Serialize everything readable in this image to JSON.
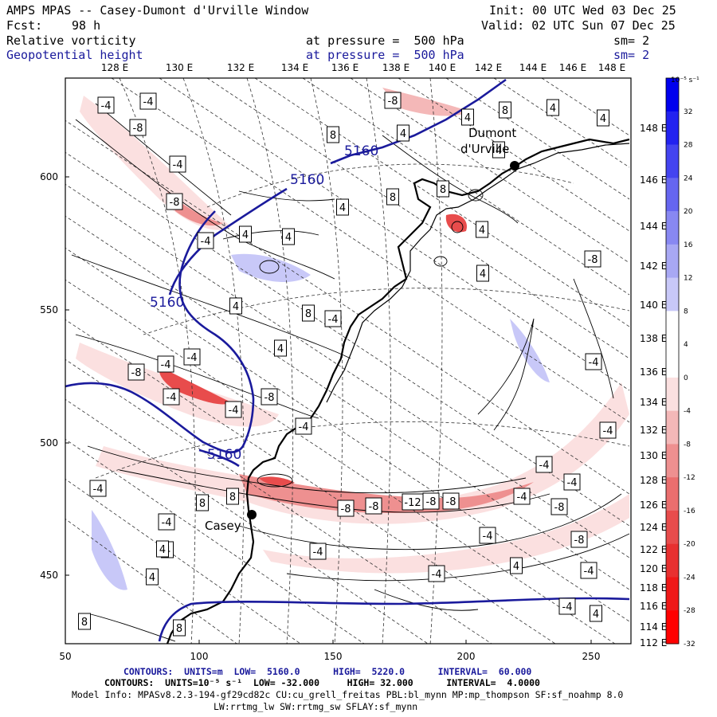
{
  "header": {
    "title": "AMPS MPAS -- Casey-Dumont d'Urville Window",
    "init": "Init: 00 UTC Wed 03 Dec 25",
    "fcst_label": "Fcst:",
    "fcst_value": "98 h",
    "valid": "Valid: 02 UTC Sun 07 Dec 25",
    "field1_name": "Relative vorticity",
    "field1_level": "at pressure =  500 hPa",
    "field1_sm": "sm= 2",
    "field2_name": "Geopotential height",
    "field2_level": "at pressure =  500 hPa",
    "field2_sm": "sm= 2"
  },
  "map": {
    "top_lon_labels": [
      "128 E",
      "130 E",
      "132 E",
      "134 E",
      "136 E",
      "138 E",
      "140 E",
      "142 E",
      "144 E",
      "146 E",
      "148 E"
    ],
    "right_lon_labels": [
      "148 E",
      "146 E",
      "144 E",
      "142 E",
      "140 E",
      "138 E",
      "136 E",
      "134 E",
      "132 E",
      "130 E",
      "128 E",
      "126 E",
      "124 E",
      "122 E",
      "120 E",
      "118 E",
      "116 E",
      "114 E",
      "112 E"
    ],
    "x_ticks": [
      "50",
      "100",
      "150",
      "200",
      "250"
    ],
    "y_ticks": [
      "600",
      "550",
      "500",
      "450"
    ],
    "stations": [
      {
        "name": "Casey"
      },
      {
        "name": "Dumont d'Urville"
      }
    ],
    "height_contour_labels": [
      "5160",
      "5160",
      "5160",
      "5160"
    ],
    "vort_labels": [
      "-4",
      "-4",
      "-8",
      "-4",
      "-8",
      "-4",
      "4",
      "4",
      "8",
      "8",
      "-8",
      "4",
      "8",
      "4",
      "4",
      "4",
      "4",
      "4",
      "4",
      "8",
      "8",
      "-4",
      "-8",
      "-4",
      "-4",
      "-8",
      "-4",
      "-8",
      "-4",
      "-4",
      "4",
      "-4",
      "-4",
      "4",
      "4",
      "-4",
      "8",
      "-4",
      "8",
      "4",
      "4",
      "4",
      "8",
      "-8",
      "-8",
      "-8",
      "-12",
      "-8",
      "-4",
      "-8",
      "-4",
      "-4",
      "-4",
      "-8",
      "-4",
      "-4",
      "4",
      "-4",
      "-4",
      "4",
      "8"
    ]
  },
  "colorbar": {
    "unit_label": "10⁻⁵ s⁻¹",
    "labels": [
      "32",
      "28",
      "24",
      "20",
      "16",
      "12",
      "8",
      "4",
      "0",
      "-4",
      "-8",
      "-12",
      "-16",
      "-20",
      "-24",
      "-28",
      "-32"
    ],
    "colors": [
      "#0000ee",
      "#2222f0",
      "#4444f0",
      "#6666f0",
      "#8888f2",
      "#a8a8f4",
      "#c8c8f8",
      "#ffffff",
      "#ffffff",
      "#fbe0e0",
      "#f4b8b8",
      "#ee9090",
      "#ea6e6e",
      "#e84c4c",
      "#e83030",
      "#ef1818",
      "#ff0000"
    ]
  },
  "footer": {
    "contours1_label": "CONTOURS:  UNITS=m  LOW=  5160.0      HIGH=  5220.0      INTERVAL=  60.000",
    "contours2_label": "CONTOURS:  UNITS=10⁻⁵ s⁻¹  LOW= -32.000     HIGH= 32.000      INTERVAL=  4.0000",
    "model_info": "Model Info: MPASv8.2.3-194-gf29cd82c CU:cu_grell_freitas PBL:bl_mynn MP:mp_thompson SF:sf_noahmp 8.0",
    "model_info2": "LW:rrtmg_lw SW:rrtmg_sw SFLAY:sf_mynn"
  }
}
